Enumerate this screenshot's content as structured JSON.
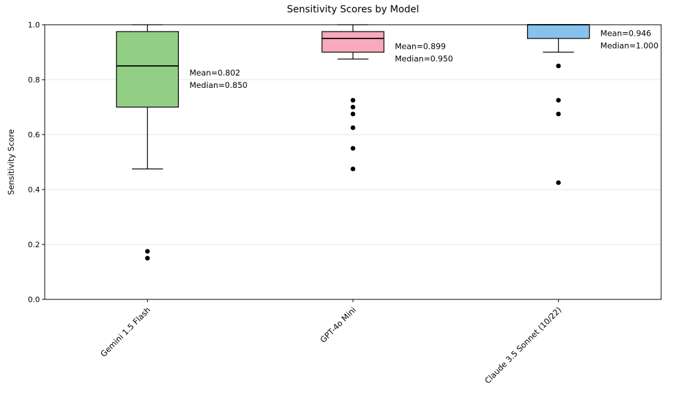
{
  "figure": {
    "background": "#ffffff"
  },
  "chart_data": {
    "type": "boxplot",
    "title": "Sensitivity Scores by Model",
    "xlabel": "",
    "ylabel": "Sensitivity Score",
    "ylim": [
      0.0,
      1.0
    ],
    "yticks": [
      0.0,
      0.2,
      0.4,
      0.6,
      0.8,
      1.0
    ],
    "grid": "horizontal",
    "gridline_color": "#e5e5e5",
    "edge_color": "#000000",
    "outlier_color": "#000000",
    "categories": [
      "Gemini 1.5 Flash",
      "GPT-4o Mini",
      "Claude 3.5 Sonnet (10/22)"
    ],
    "series": [
      {
        "name": "Gemini 1.5 Flash",
        "box_color": "#93ce85",
        "whisker_low": 0.475,
        "q1": 0.7,
        "median": 0.85,
        "q3": 0.975,
        "whisker_high": 1.0,
        "mean": 0.802,
        "outliers": [
          0.175,
          0.15
        ],
        "annotation_lines": [
          "Mean=0.802",
          "Median=0.850"
        ]
      },
      {
        "name": "GPT-4o Mini",
        "box_color": "#f9a9bc",
        "whisker_low": 0.875,
        "q1": 0.9,
        "median": 0.95,
        "q3": 0.975,
        "whisker_high": 1.0,
        "mean": 0.899,
        "outliers": [
          0.725,
          0.7,
          0.675,
          0.625,
          0.55,
          0.475
        ],
        "annotation_lines": [
          "Mean=0.899",
          "Median=0.950"
        ]
      },
      {
        "name": "Claude 3.5 Sonnet (10/22)",
        "box_color": "#87c2ec",
        "whisker_low": 0.9,
        "q1": 0.95,
        "median": 1.0,
        "q3": 1.0,
        "whisker_high": 1.0,
        "mean": 0.946,
        "outliers": [
          0.85,
          0.725,
          0.675,
          0.425
        ],
        "annotation_lines": [
          "Mean=0.946",
          "Median=1.000"
        ]
      }
    ]
  }
}
